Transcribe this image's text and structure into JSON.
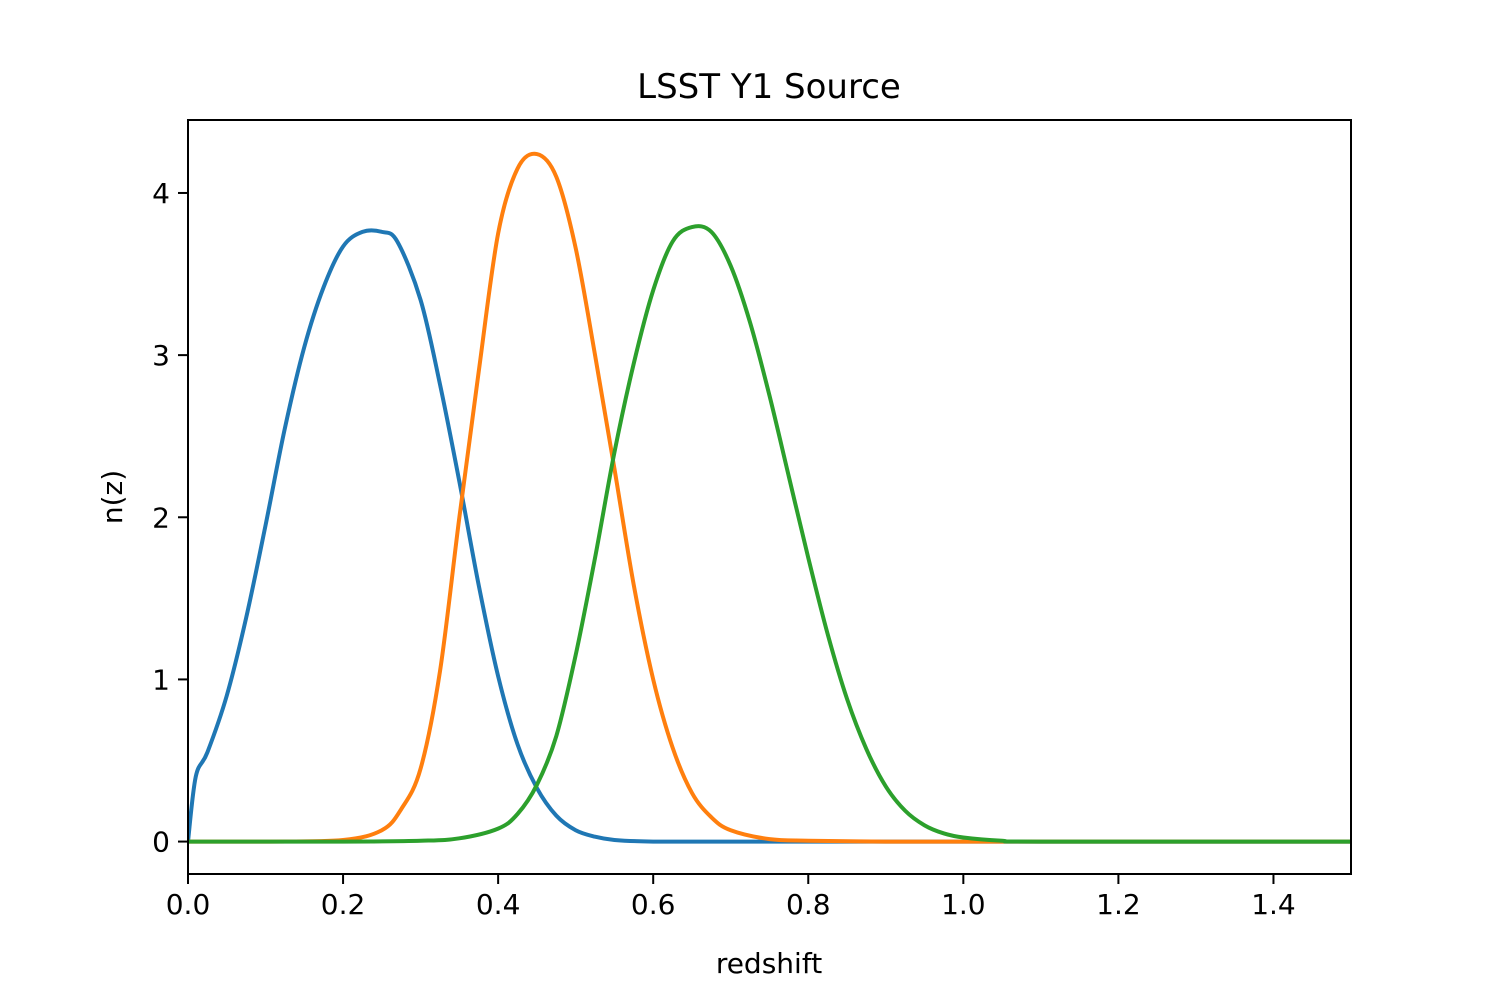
{
  "chart_data": {
    "type": "line",
    "title": "LSST Y1 Source",
    "xlabel": "redshift",
    "ylabel": "n(z)",
    "xlim": [
      0.0,
      1.5
    ],
    "ylim": [
      -0.2,
      4.45
    ],
    "xticks": [
      0.0,
      0.2,
      0.4,
      0.6,
      0.8,
      1.0,
      1.2,
      1.4
    ],
    "xtick_labels": [
      "0.0",
      "0.2",
      "0.4",
      "0.6",
      "0.8",
      "1.0",
      "1.2",
      "1.4"
    ],
    "yticks": [
      0,
      1,
      2,
      3,
      4
    ],
    "ytick_labels": [
      "0",
      "1",
      "2",
      "3",
      "4"
    ],
    "grid": false,
    "legend": false,
    "series": [
      {
        "color": "#1f77b4",
        "x": [
          0.0,
          0.01,
          0.025,
          0.05,
          0.075,
          0.1,
          0.125,
          0.15,
          0.175,
          0.2,
          0.225,
          0.25,
          0.27,
          0.3,
          0.325,
          0.35,
          0.375,
          0.4,
          0.425,
          0.45,
          0.475,
          0.5,
          0.525,
          0.55,
          0.6,
          0.7,
          0.8,
          1.0,
          1.2,
          1.5
        ],
        "y": [
          0.0,
          0.4,
          0.55,
          0.9,
          1.38,
          1.95,
          2.55,
          3.05,
          3.42,
          3.67,
          3.76,
          3.76,
          3.7,
          3.34,
          2.82,
          2.22,
          1.58,
          1.02,
          0.6,
          0.33,
          0.16,
          0.07,
          0.03,
          0.01,
          0.0,
          0.0,
          0.0,
          0.0,
          0.0,
          0.0
        ]
      },
      {
        "color": "#ff7f0e",
        "x": [
          0.0,
          0.1,
          0.2,
          0.25,
          0.275,
          0.3,
          0.325,
          0.35,
          0.375,
          0.4,
          0.425,
          0.45,
          0.475,
          0.5,
          0.525,
          0.55,
          0.575,
          0.6,
          0.625,
          0.65,
          0.675,
          0.7,
          0.75,
          0.8,
          0.9,
          1.0,
          1.5
        ],
        "y": [
          0.0,
          0.0,
          0.01,
          0.07,
          0.2,
          0.45,
          1.05,
          2.0,
          2.9,
          3.75,
          4.15,
          4.24,
          4.1,
          3.66,
          3.0,
          2.3,
          1.58,
          1.0,
          0.58,
          0.3,
          0.15,
          0.07,
          0.015,
          0.005,
          0.0,
          0.0,
          0.0
        ]
      },
      {
        "color": "#2ca02c",
        "x": [
          0.0,
          0.2,
          0.3,
          0.35,
          0.4,
          0.425,
          0.45,
          0.475,
          0.5,
          0.525,
          0.55,
          0.575,
          0.6,
          0.625,
          0.65,
          0.675,
          0.7,
          0.725,
          0.75,
          0.775,
          0.8,
          0.825,
          0.85,
          0.875,
          0.9,
          0.925,
          0.95,
          0.975,
          1.0,
          1.05,
          1.1,
          1.5
        ],
        "y": [
          0.0,
          0.0,
          0.005,
          0.02,
          0.08,
          0.17,
          0.35,
          0.65,
          1.15,
          1.75,
          2.4,
          2.95,
          3.4,
          3.7,
          3.79,
          3.76,
          3.55,
          3.2,
          2.75,
          2.25,
          1.75,
          1.28,
          0.88,
          0.57,
          0.34,
          0.19,
          0.1,
          0.05,
          0.025,
          0.005,
          0.0,
          0.0
        ]
      }
    ]
  }
}
